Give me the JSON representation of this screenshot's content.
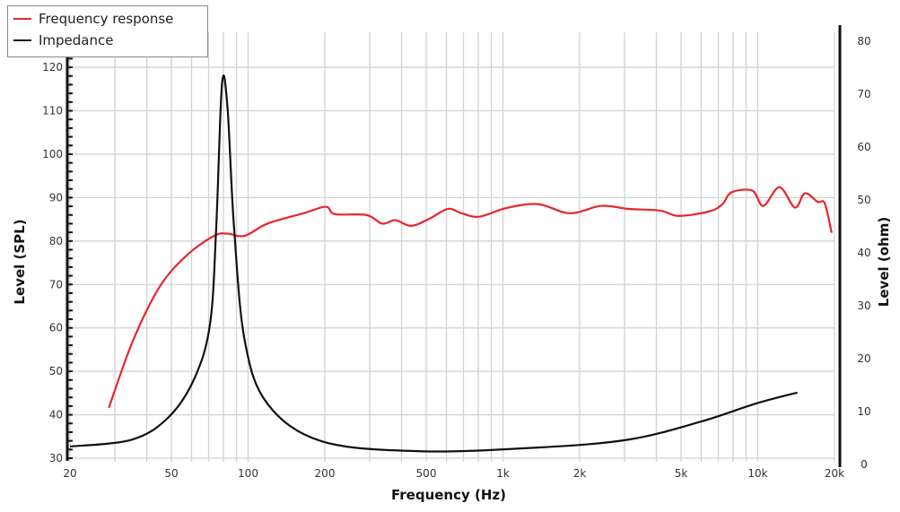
{
  "chart_data": {
    "type": "line",
    "xlabel": "Frequency (Hz)",
    "ylabel": "Level (SPL)",
    "y2label": "Level (ohm)",
    "xscale": "log",
    "xlim": [
      20,
      20000
    ],
    "ylim": [
      30,
      126
    ],
    "y2lim": [
      0,
      80
    ],
    "grid": true,
    "legend_position": "top-left",
    "x_ticks": [
      20,
      50,
      100,
      200,
      500,
      1000,
      2000,
      5000,
      10000,
      20000
    ],
    "x_tick_labels": [
      "20",
      "50",
      "100",
      "200",
      "500",
      "1k",
      "2k",
      "5k",
      "10k",
      "20k"
    ],
    "y_ticks": [
      30,
      40,
      50,
      60,
      70,
      80,
      90,
      100,
      110,
      120
    ],
    "y_tick_labels": [
      "30",
      "40",
      "50",
      "60",
      "70",
      "80",
      "90",
      "100",
      "110",
      "120"
    ],
    "y2_ticks": [
      0,
      10,
      20,
      30,
      40,
      50,
      60,
      70,
      80
    ],
    "y2_tick_labels": [
      "0",
      "10",
      "20",
      "30",
      "40",
      "50",
      "60",
      "70",
      "80"
    ],
    "series": [
      {
        "name": "Frequency response",
        "color": "#e8262b",
        "axis": "left",
        "x": [
          28.4,
          35.3,
          45,
          57.4,
          73.6,
          82.9,
          97,
          119,
          165,
          202,
          219,
          291,
          336,
          378,
          437,
          517,
          608,
          688,
          806,
          1032,
          1373,
          1830,
          2432,
          3114,
          4140,
          4880,
          6430,
          7270,
          7887,
          9520,
          10510,
          12170,
          13990,
          15300,
          17200,
          18300,
          19500
        ],
        "y": [
          41.6,
          57,
          69.5,
          76.7,
          81.2,
          81.7,
          81.2,
          84,
          86.4,
          87.9,
          86.2,
          86,
          84,
          84.8,
          83.5,
          85.2,
          87.4,
          86.4,
          85.6,
          87.6,
          88.5,
          86.4,
          88.1,
          87.4,
          87,
          85.8,
          86.8,
          88.5,
          91.2,
          91.6,
          88.1,
          92.4,
          87.7,
          91,
          89,
          88.7,
          81.9
        ]
      },
      {
        "name": "Impedance",
        "color": "#111111",
        "axis": "right",
        "x": [
          20,
          35,
          48.9,
          62,
          71,
          75,
          79,
          83,
          88,
          97,
          119,
          194,
          475,
          1370,
          3110,
          5980,
          9800,
          14300
        ],
        "y": [
          3.4,
          4.7,
          9,
          16.6,
          26.8,
          45,
          72,
          67.5,
          45,
          23.4,
          11.5,
          4.4,
          2.5,
          3.2,
          4.7,
          8.1,
          11.5,
          13.6
        ]
      }
    ]
  }
}
